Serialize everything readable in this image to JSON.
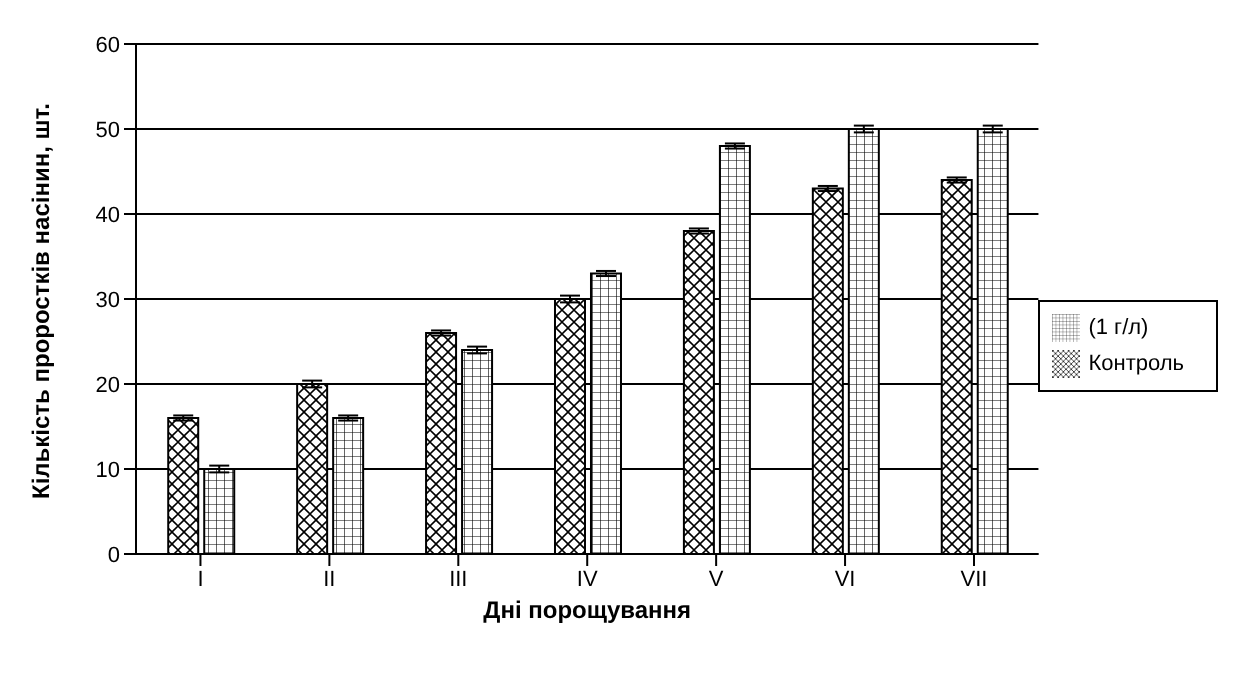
{
  "chart_data": {
    "type": "bar",
    "xlabel": "Дні порощування",
    "ylabel": "Кількість проростків насінин, шт.",
    "categories": [
      "I",
      "II",
      "III",
      "IV",
      "V",
      "VI",
      "VII"
    ],
    "series": [
      {
        "name": "Контроль",
        "color": "#000000",
        "values": [
          16,
          20,
          26,
          30,
          38,
          43,
          44
        ],
        "errors": [
          0.3,
          0.4,
          0.3,
          0.4,
          0.3,
          0.3,
          0.3
        ]
      },
      {
        "name": "(1 г/л)",
        "color": "#000000",
        "values": [
          10,
          16,
          24,
          33,
          48,
          50,
          50
        ],
        "errors": [
          0.4,
          0.3,
          0.4,
          0.3,
          0.3,
          0.4,
          0.4
        ]
      }
    ],
    "ylim": [
      0,
      60
    ],
    "yticks": [
      0,
      10,
      20,
      30,
      40,
      50,
      60
    ],
    "grid": "y",
    "legend": "right"
  }
}
